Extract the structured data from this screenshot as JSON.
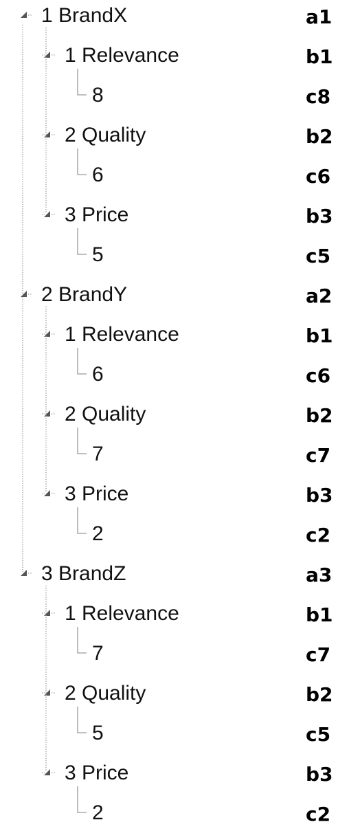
{
  "nodes": [
    {
      "label": "1 BrandX",
      "tag": "a1",
      "children": [
        {
          "label": "1 Relevance",
          "tag": "b1",
          "children": [
            {
              "label": "8",
              "tag": "c8"
            }
          ]
        },
        {
          "label": "2 Quality",
          "tag": "b2",
          "children": [
            {
              "label": "6",
              "tag": "c6"
            }
          ]
        },
        {
          "label": "3 Price",
          "tag": "b3",
          "children": [
            {
              "label": "5",
              "tag": "c5"
            }
          ]
        }
      ]
    },
    {
      "label": "2 BrandY",
      "tag": "a2",
      "children": [
        {
          "label": "1 Relevance",
          "tag": "b1",
          "children": [
            {
              "label": "6",
              "tag": "c6"
            }
          ]
        },
        {
          "label": "2 Quality",
          "tag": "b2",
          "children": [
            {
              "label": "7",
              "tag": "c7"
            }
          ]
        },
        {
          "label": "3 Price",
          "tag": "b3",
          "children": [
            {
              "label": "2",
              "tag": "c2"
            }
          ]
        }
      ]
    },
    {
      "label": "3 BrandZ",
      "tag": "a3",
      "children": [
        {
          "label": "1 Relevance",
          "tag": "b1",
          "children": [
            {
              "label": "7",
              "tag": "c7"
            }
          ]
        },
        {
          "label": "2 Quality",
          "tag": "b2",
          "children": [
            {
              "label": "5",
              "tag": "c5"
            }
          ]
        },
        {
          "label": "3 Price",
          "tag": "b3",
          "children": [
            {
              "label": "2",
              "tag": "c2"
            }
          ]
        }
      ]
    }
  ]
}
